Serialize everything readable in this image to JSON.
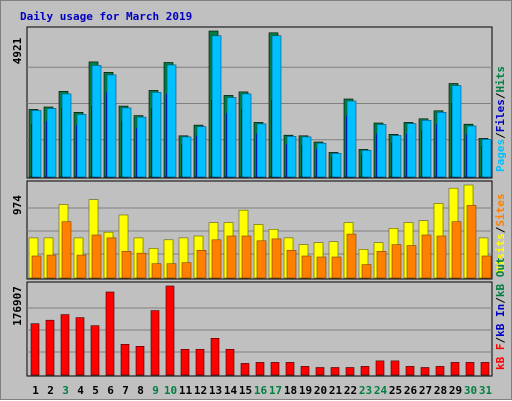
{
  "chart_data": {
    "type": "bar",
    "title": "Daily usage for March 2019",
    "categories": [
      "1",
      "2",
      "3",
      "4",
      "5",
      "6",
      "7",
      "8",
      "9",
      "10",
      "11",
      "12",
      "13",
      "14",
      "15",
      "16",
      "17",
      "18",
      "19",
      "20",
      "21",
      "22",
      "23",
      "24",
      "25",
      "26",
      "27",
      "28",
      "29",
      "30",
      "31"
    ],
    "weekend_days": [
      "3",
      "9",
      "10",
      "16",
      "17",
      "23",
      "24",
      "30",
      "31"
    ],
    "panels": [
      {
        "id": "hits",
        "max_label": "4921",
        "max": 4921,
        "legend": [
          {
            "text": "Pages",
            "color": "#00c0ff"
          },
          {
            "text": "/",
            "color": "#000000"
          },
          {
            "text": "Files",
            "color": "#0000c0"
          },
          {
            "text": "/",
            "color": "#000000"
          },
          {
            "text": "Hits",
            "color": "#008040"
          }
        ],
        "series": [
          {
            "name": "Hits",
            "color": "#008040",
            "values": [
              2280,
              2360,
              2890,
              2180,
              3880,
              3530,
              2390,
              2070,
              2920,
              3860,
              1390,
              1750,
              4921,
              2750,
              2870,
              1840,
              4860,
              1410,
              1390,
              1180,
              830,
              2630,
              930,
              1820,
              1440,
              1840,
              1960,
              2230,
              3150,
              1780,
              1300
            ]
          },
          {
            "name": "Files",
            "color": "#0000c0",
            "values": [
              1800,
              1880,
              2330,
              1750,
              2400,
              2850,
              1900,
              1660,
              2330,
              2800,
              1100,
              1400,
              2600,
              2150,
              2300,
              1460,
              2600,
              1110,
              1090,
              940,
              660,
              2070,
              730,
              1460,
              1150,
              1460,
              1570,
              1780,
              2500,
              1440,
              1040
            ]
          },
          {
            "name": "Pages",
            "color": "#00c0ff",
            "values": [
              2240,
              2310,
              2800,
              2110,
              3760,
              3440,
              2330,
              2020,
              2850,
              3780,
              1350,
              1700,
              4760,
              2680,
              2800,
              1790,
              4760,
              1370,
              1350,
              1140,
              800,
              2560,
              900,
              1770,
              1400,
              1800,
              1910,
              2180,
              3080,
              1720,
              1270
            ]
          }
        ]
      },
      {
        "id": "visits",
        "max_label": "974",
        "max": 974,
        "legend": [
          {
            "text": "Visits",
            "color": "#ffff00"
          },
          {
            "text": "/",
            "color": "#000000"
          },
          {
            "text": "Sites",
            "color": "#ff8000"
          }
        ],
        "series": [
          {
            "name": "Visits",
            "color": "#ffff00",
            "values": [
              420,
              420,
              770,
              420,
              820,
              480,
              660,
              420,
              310,
              400,
              420,
              440,
              580,
              580,
              710,
              560,
              510,
              420,
              350,
              370,
              380,
              580,
              300,
              370,
              520,
              580,
              600,
              780,
              940,
              974,
              420
            ]
          },
          {
            "name": "Sites",
            "color": "#ff8000",
            "values": [
              230,
              240,
              590,
              240,
              450,
              420,
              280,
              260,
              150,
              150,
              160,
              290,
              400,
              440,
              440,
              390,
              410,
              290,
              230,
              220,
              220,
              460,
              140,
              280,
              350,
              340,
              450,
              440,
              590,
              760,
              230
            ]
          }
        ]
      },
      {
        "id": "kbytes",
        "max_label": "176907",
        "max": 176907,
        "legend": [
          {
            "text": "kB F",
            "color": "#ff0000"
          },
          {
            "text": "/",
            "color": "#000000"
          },
          {
            "text": "kB In",
            "color": "#0000c0"
          },
          {
            "text": "/",
            "color": "#000000"
          },
          {
            "text": "kB Out",
            "color": "#008040"
          }
        ],
        "series": [
          {
            "name": "kB F",
            "color": "#ff0000",
            "values": [
              102000,
              109000,
              120000,
              114000,
              98000,
              165000,
              61000,
              57000,
              128000,
              176907,
              51000,
              51000,
              73000,
              51000,
              23000,
              25000,
              25000,
              25000,
              17000,
              15000,
              15000,
              15000,
              17000,
              28000,
              28000,
              17000,
              15000,
              17000,
              25000,
              25000,
              25000
            ]
          }
        ]
      }
    ]
  }
}
